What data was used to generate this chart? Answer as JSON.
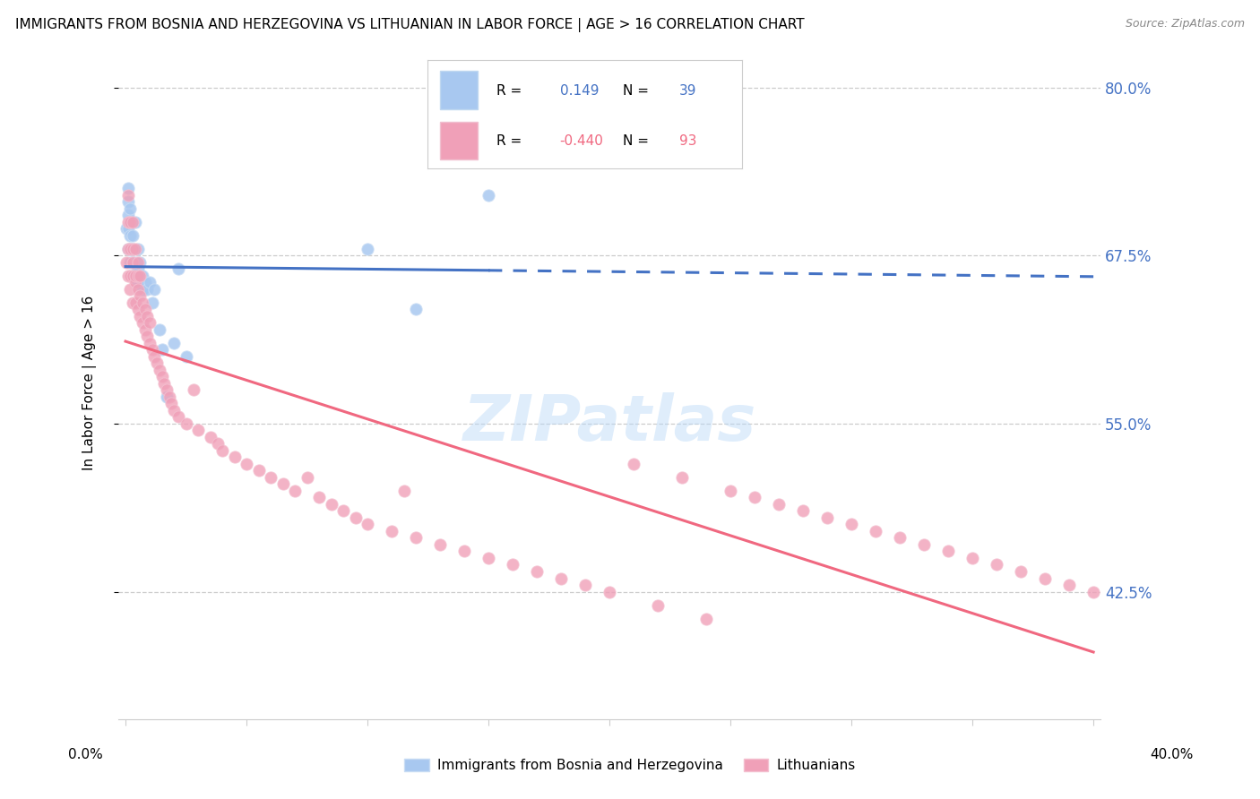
{
  "title": "IMMIGRANTS FROM BOSNIA AND HERZEGOVINA VS LITHUANIAN IN LABOR FORCE | AGE > 16 CORRELATION CHART",
  "source": "Source: ZipAtlas.com",
  "ylabel": "In Labor Force | Age > 16",
  "right_ytick_vals": [
    0.8,
    0.675,
    0.55,
    0.425
  ],
  "right_ytick_labels": [
    "80.0%",
    "67.5%",
    "55.0%",
    "42.5%"
  ],
  "color_bosnia": "#a8c8f0",
  "color_lithuanian": "#f0a0b8",
  "trendline_bosnia_color": "#4472c4",
  "trendline_lithuanian_color": "#f06880",
  "legend_label1": "Immigrants from Bosnia and Herzegovina",
  "legend_label2": "Lithuanians",
  "watermark": "ZIPatlas",
  "xlim": [
    0.0,
    0.4
  ],
  "ylim": [
    0.33,
    0.83
  ],
  "bosnia_R": 0.149,
  "bosnia_N": 39,
  "lithuanian_R": -0.44,
  "lithuanian_N": 93,
  "bosnia_x": [
    0.0005,
    0.001,
    0.001,
    0.001,
    0.001,
    0.001,
    0.002,
    0.002,
    0.002,
    0.002,
    0.002,
    0.003,
    0.003,
    0.003,
    0.003,
    0.004,
    0.004,
    0.004,
    0.005,
    0.005,
    0.005,
    0.006,
    0.006,
    0.007,
    0.007,
    0.008,
    0.009,
    0.01,
    0.011,
    0.012,
    0.014,
    0.015,
    0.017,
    0.02,
    0.022,
    0.025,
    0.1,
    0.12,
    0.15
  ],
  "bosnia_y": [
    0.695,
    0.68,
    0.695,
    0.705,
    0.715,
    0.725,
    0.67,
    0.68,
    0.69,
    0.7,
    0.71,
    0.66,
    0.67,
    0.68,
    0.69,
    0.66,
    0.67,
    0.7,
    0.655,
    0.665,
    0.68,
    0.66,
    0.67,
    0.65,
    0.66,
    0.655,
    0.65,
    0.655,
    0.64,
    0.65,
    0.62,
    0.605,
    0.57,
    0.61,
    0.665,
    0.6,
    0.68,
    0.635,
    0.72
  ],
  "lithuanian_x": [
    0.0005,
    0.001,
    0.001,
    0.001,
    0.001,
    0.002,
    0.002,
    0.002,
    0.002,
    0.003,
    0.003,
    0.003,
    0.003,
    0.003,
    0.004,
    0.004,
    0.004,
    0.004,
    0.005,
    0.005,
    0.005,
    0.005,
    0.006,
    0.006,
    0.006,
    0.007,
    0.007,
    0.008,
    0.008,
    0.009,
    0.009,
    0.01,
    0.01,
    0.011,
    0.012,
    0.013,
    0.014,
    0.015,
    0.016,
    0.017,
    0.018,
    0.019,
    0.02,
    0.022,
    0.025,
    0.028,
    0.03,
    0.035,
    0.038,
    0.04,
    0.045,
    0.05,
    0.055,
    0.06,
    0.065,
    0.07,
    0.075,
    0.08,
    0.085,
    0.09,
    0.095,
    0.1,
    0.11,
    0.115,
    0.12,
    0.13,
    0.14,
    0.15,
    0.16,
    0.17,
    0.18,
    0.19,
    0.2,
    0.21,
    0.22,
    0.23,
    0.24,
    0.25,
    0.26,
    0.27,
    0.28,
    0.29,
    0.3,
    0.31,
    0.32,
    0.33,
    0.34,
    0.35,
    0.36,
    0.37,
    0.38,
    0.39,
    0.4
  ],
  "lithuanian_y": [
    0.67,
    0.66,
    0.68,
    0.7,
    0.72,
    0.65,
    0.66,
    0.68,
    0.7,
    0.64,
    0.66,
    0.67,
    0.68,
    0.7,
    0.64,
    0.655,
    0.66,
    0.68,
    0.635,
    0.65,
    0.66,
    0.67,
    0.63,
    0.645,
    0.66,
    0.625,
    0.64,
    0.62,
    0.635,
    0.615,
    0.63,
    0.61,
    0.625,
    0.605,
    0.6,
    0.595,
    0.59,
    0.585,
    0.58,
    0.575,
    0.57,
    0.565,
    0.56,
    0.555,
    0.55,
    0.575,
    0.545,
    0.54,
    0.535,
    0.53,
    0.525,
    0.52,
    0.515,
    0.51,
    0.505,
    0.5,
    0.51,
    0.495,
    0.49,
    0.485,
    0.48,
    0.475,
    0.47,
    0.5,
    0.465,
    0.46,
    0.455,
    0.45,
    0.445,
    0.44,
    0.435,
    0.43,
    0.425,
    0.52,
    0.415,
    0.51,
    0.405,
    0.5,
    0.495,
    0.49,
    0.485,
    0.48,
    0.475,
    0.47,
    0.465,
    0.46,
    0.455,
    0.45,
    0.445,
    0.44,
    0.435,
    0.43,
    0.425
  ]
}
